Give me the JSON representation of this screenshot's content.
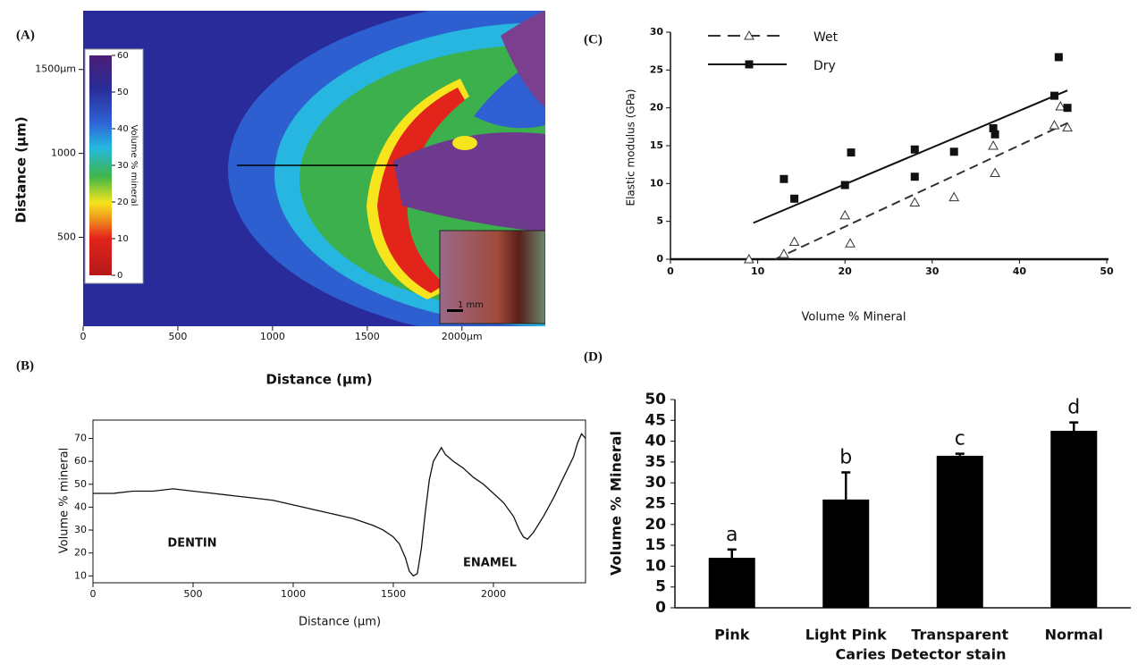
{
  "chart_data": [
    {
      "type": "image",
      "panel": "(A)",
      "x_label": "Distance (µm)",
      "y_label": "Distance (µm)",
      "xlim": [
        0,
        2440
      ],
      "ylim": [
        -30,
        1850
      ],
      "xticks": [
        0,
        500,
        1000,
        1500,
        {
          "value": 2000,
          "label": "2000µm"
        }
      ],
      "yticks": [
        500,
        1000,
        {
          "value": 1500,
          "label": "1500µm"
        }
      ],
      "colorbar": {
        "label": "Volume % mineral",
        "lim": [
          0,
          60
        ],
        "ticks": [
          0,
          10,
          20,
          30,
          40,
          50,
          60
        ]
      },
      "scale_bar": "1 mm"
    },
    {
      "type": "line",
      "panel": "(B)",
      "x_label": "Distance (µm)",
      "y_label": "Volume % mineral",
      "annotations": [
        "DENTIN",
        "ENAMEL"
      ],
      "color": "#111111",
      "xlim": [
        0,
        2460
      ],
      "ylim": [
        7,
        78
      ],
      "xticks": [
        0,
        500,
        1000,
        1500,
        2000
      ],
      "yticks": [
        10,
        20,
        30,
        40,
        50,
        60,
        70
      ],
      "x": [
        0,
        100,
        200,
        300,
        400,
        500,
        600,
        700,
        800,
        900,
        1000,
        1100,
        1200,
        1300,
        1400,
        1450,
        1500,
        1530,
        1560,
        1580,
        1600,
        1620,
        1640,
        1660,
        1680,
        1700,
        1720,
        1740,
        1760,
        1800,
        1850,
        1900,
        1950,
        2000,
        2050,
        2100,
        2130,
        2150,
        2170,
        2200,
        2250,
        2300,
        2350,
        2400,
        2420,
        2440,
        2460
      ],
      "values": [
        46,
        46,
        47,
        47,
        48,
        47,
        46,
        45,
        44,
        43,
        41,
        39,
        37,
        35,
        32,
        30,
        27,
        24,
        18,
        12,
        10,
        11,
        22,
        38,
        52,
        60,
        63,
        66,
        63,
        60,
        57,
        53,
        50,
        46,
        42,
        36,
        30,
        27,
        26,
        29,
        36,
        44,
        53,
        62,
        68,
        72,
        70
      ]
    },
    {
      "type": "scatter",
      "panel": "(C)",
      "x_label": "Volume % Mineral",
      "y_label": "Elastic modulus (GPa)",
      "xlim": [
        0,
        50
      ],
      "ylim": [
        0,
        30
      ],
      "xticks": [
        0,
        10,
        20,
        30,
        40,
        50
      ],
      "yticks": [
        0,
        5,
        10,
        15,
        20,
        25,
        30
      ],
      "series": [
        {
          "name": "Wet",
          "color": "#333333",
          "marker": "triangle",
          "dash": true,
          "x": [
            9,
            13,
            14.2,
            20,
            20.6,
            28,
            32.5,
            37,
            37.2,
            44,
            44.7,
            45.5
          ],
          "values": [
            0,
            0.7,
            2.3,
            5.8,
            2.1,
            7.5,
            8.2,
            15,
            11.4,
            17.7,
            20.2,
            17.4
          ],
          "fit": {
            "x": [
              12,
              45.5
            ],
            "y": [
              0,
              18
            ]
          }
        },
        {
          "name": "Dry",
          "color": "#111111",
          "marker": "square",
          "dash": false,
          "x": [
            13,
            14.2,
            20,
            20.7,
            28,
            28,
            32.5,
            37,
            37.2,
            44,
            44.5,
            45.5
          ],
          "values": [
            10.6,
            8,
            9.8,
            14.1,
            14.5,
            10.9,
            14.2,
            17.3,
            16.5,
            21.6,
            26.7,
            20
          ],
          "fit": {
            "x": [
              9.5,
              45.5
            ],
            "y": [
              4.8,
              22.3
            ]
          }
        }
      ]
    },
    {
      "type": "bar",
      "panel": "(D)",
      "x_label": "Caries Detector stain",
      "y_label": "Volume % Mineral",
      "color": "#000000",
      "categories": [
        "Pink",
        "Light Pink",
        "Transparent",
        "Normal"
      ],
      "values": [
        12,
        26,
        36.5,
        42.5
      ],
      "errors": [
        2,
        6.5,
        0.5,
        2
      ],
      "annotations": [
        "a",
        "b",
        "c",
        "d"
      ],
      "ylim": [
        0,
        50
      ],
      "yticks": [
        0,
        5,
        10,
        15,
        20,
        25,
        30,
        35,
        40,
        45,
        50
      ]
    }
  ]
}
